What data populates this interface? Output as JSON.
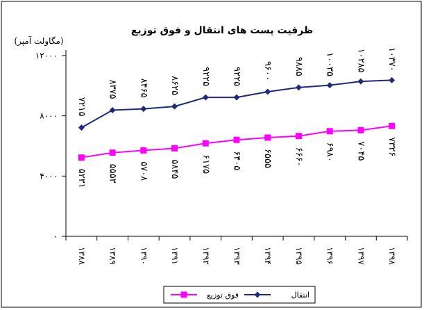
{
  "chart_data": {
    "type": "line",
    "title": "ظرفیت پست های انتقال و فوق توزیع",
    "ylabel": "(مگاولت آمپر)",
    "xlabel": "",
    "ylim": [
      0,
      12000
    ],
    "yticks": [
      0,
      4000,
      8000,
      12000
    ],
    "ytick_labels": [
      "۰",
      "۴۰۰۰",
      "۸۰۰۰",
      "۱۲۰۰۰"
    ],
    "categories": [
      "۱۳۸۸",
      "۱۳۸۹",
      "۱۳۹۰",
      "۱۳۹۱",
      "۱۳۹۲",
      "۱۳۹۳",
      "۱۳۹۴",
      "۱۳۹۵",
      "۱۳۹۶",
      "۱۳۹۷",
      "۱۳۹۸"
    ],
    "grid": false,
    "legend_position": "bottom",
    "series": [
      {
        "name": "انتقال",
        "color": "#1f2a7a",
        "marker": "diamond",
        "values": [
          7215,
          8375,
          8465,
          8625,
          9225,
          9225,
          9600,
          9885,
          10035,
          10285,
          10370
        ],
        "labels": [
          "۷۲۱۵",
          "۸۳۷۵",
          "۸۴۶۵",
          "۸۶۲۵",
          "۹۲۲۵",
          "۹۲۲۵",
          "۹۶۰۰",
          "۹۸۸۵",
          "۱۰۰۳۵",
          "۱۰۲۸۵",
          "۱۰۳۷۰"
        ]
      },
      {
        "name": "فوق توزیع",
        "color": "#ff00ff",
        "marker": "square",
        "values": [
          5231,
          5553,
          5708,
          5845,
          6175,
          6405,
          6555,
          6660,
          6980,
          7045,
          7326
        ],
        "labels": [
          "۵۲۳۱",
          "۵۵۵۳",
          "۵۷۰۸",
          "۵۸۴۵",
          "۶۱۷۵",
          "۶۴۰۵",
          "۶۵۵۵",
          "۶۶۶۰",
          "۶۹۸۰",
          "۷۰۴۵",
          "۷۳۲۶"
        ]
      }
    ]
  }
}
